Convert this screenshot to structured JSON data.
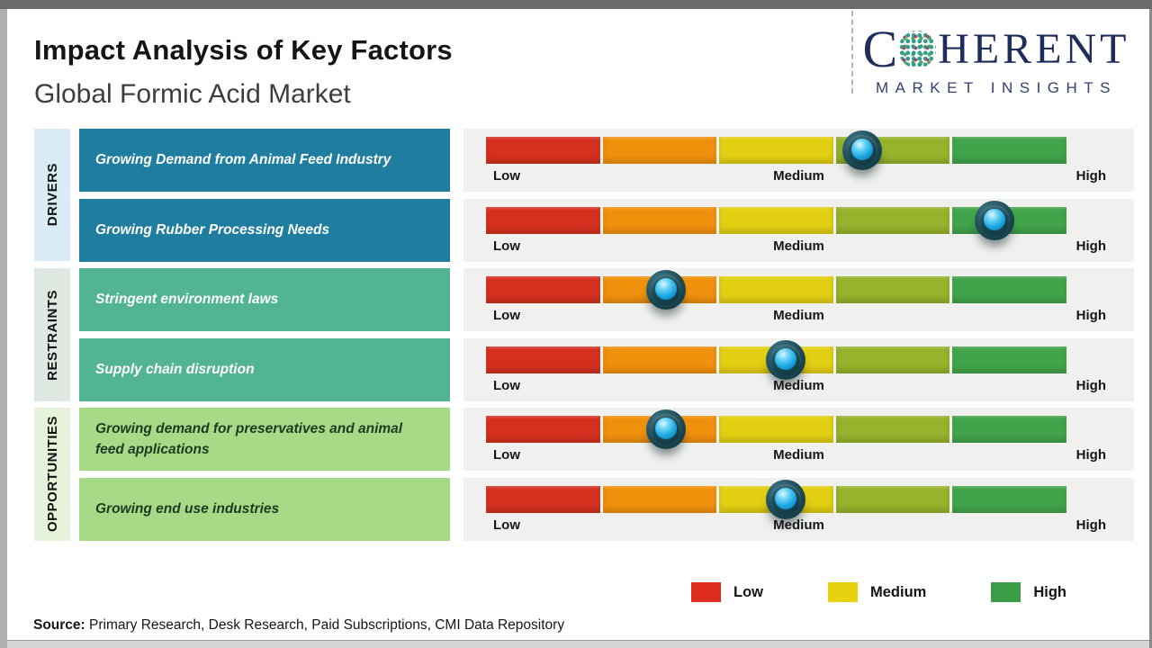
{
  "header": {
    "title": "Impact Analysis of Key Factors",
    "subtitle": "Global Formic Acid Market",
    "logo": {
      "c": "C",
      "rest": "HERENT",
      "tagline": "MARKET INSIGHTS",
      "navy": "#1f2d5a"
    }
  },
  "categories": [
    {
      "label": "DRIVERS",
      "color": "#d9ecf6"
    },
    {
      "label": "RESTRAINTS",
      "color": "#dfe9e2"
    },
    {
      "label": "OPPORTUNITIES",
      "color": "#e6f2d9"
    }
  ],
  "rows": [
    {
      "category": "DRIVERS",
      "label": "Growing Demand from Animal Feed Industry",
      "box_color": "#1f7e9f",
      "text_color": "#ffffff",
      "marker_left": "64.8%"
    },
    {
      "category": "DRIVERS",
      "label": "Growing Rubber Processing Needs",
      "box_color": "#1f7e9f",
      "text_color": "#ffffff",
      "marker_left": "87.6%"
    },
    {
      "category": "RESTRAINTS",
      "label": "Stringent environment laws",
      "box_color": "#52b493",
      "text_color": "#ffffff",
      "marker_left": "31%"
    },
    {
      "category": "RESTRAINTS",
      "label": "Supply chain disruption",
      "box_color": "#52b493",
      "text_color": "#ffffff",
      "marker_left": "51.6%"
    },
    {
      "category": "OPPORTUNITIES",
      "label": "Growing demand for preservatives and animal feed applications",
      "box_color": "#a7da87",
      "text_color": "#1d3a1f",
      "marker_left": "31%"
    },
    {
      "category": "OPPORTUNITIES",
      "label": "Growing end use industries",
      "box_color": "#a7da87",
      "text_color": "#1d3a1f",
      "marker_left": "51.6%"
    }
  ],
  "scale": {
    "segment_colors": [
      "#d5301f",
      "#f0910c",
      "#e3cf12",
      "#97b32b",
      "#42a44a"
    ],
    "labels": [
      "Low",
      "Medium",
      "High"
    ]
  },
  "legend": {
    "items": [
      {
        "label": "Low",
        "color": "#dd2b1e"
      },
      {
        "label": "Medium",
        "color": "#e8d20f"
      },
      {
        "label": "High",
        "color": "#3b9e47"
      }
    ]
  },
  "source": {
    "prefix": "Source:",
    "text": " Primary Research, Desk Research, Paid Subscriptions, CMI Data Repository"
  },
  "chart_data": {
    "type": "scatter",
    "title": "Impact Analysis of Key Factors",
    "subtitle": "Global Formic Acid Market",
    "x_axis": {
      "labels": [
        "Low",
        "Medium",
        "High"
      ],
      "range_percent": [
        0,
        100
      ]
    },
    "points": [
      {
        "category": "Drivers",
        "factor": "Growing Demand from Animal Feed Industry",
        "impact_percent": 65,
        "impact_reading": "Medium-High"
      },
      {
        "category": "Drivers",
        "factor": "Growing Rubber Processing Needs",
        "impact_percent": 88,
        "impact_reading": "High"
      },
      {
        "category": "Restraints",
        "factor": "Stringent environment laws",
        "impact_percent": 31,
        "impact_reading": "Low-Medium"
      },
      {
        "category": "Restraints",
        "factor": "Supply chain disruption",
        "impact_percent": 52,
        "impact_reading": "Medium"
      },
      {
        "category": "Opportunities",
        "factor": "Growing demand for preservatives and animal feed applications",
        "impact_percent": 31,
        "impact_reading": "Low-Medium"
      },
      {
        "category": "Opportunities",
        "factor": "Growing end use industries",
        "impact_percent": 52,
        "impact_reading": "Medium"
      }
    ],
    "legend_position": "bottom-right"
  }
}
